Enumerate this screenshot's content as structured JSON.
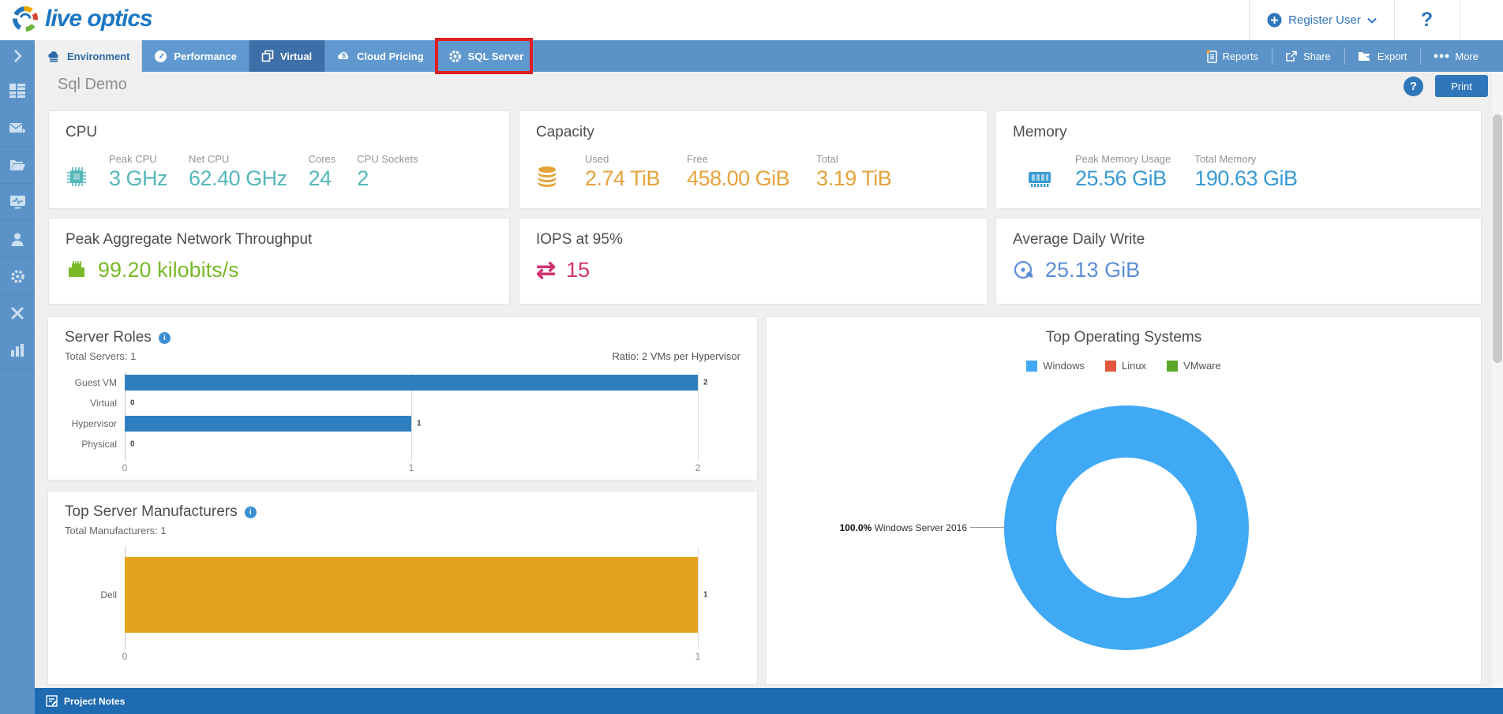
{
  "brand": {
    "name": "live optics"
  },
  "topbar": {
    "register_user": "Register User",
    "help": "?"
  },
  "tabbar": {
    "tabs": [
      {
        "label": "Environment"
      },
      {
        "label": "Performance"
      },
      {
        "label": "Virtual"
      },
      {
        "label": "Cloud Pricing"
      },
      {
        "label": "SQL Server"
      }
    ],
    "actions": [
      {
        "label": "Reports"
      },
      {
        "label": "Share"
      },
      {
        "label": "Export"
      },
      {
        "label": "More"
      }
    ]
  },
  "page": {
    "title": "Sql Demo",
    "print_label": "Print",
    "help": "?"
  },
  "cpu": {
    "title": "CPU",
    "accent": "#54b7b9",
    "metrics": [
      {
        "label": "Peak CPU",
        "value": "3 GHz"
      },
      {
        "label": "Net CPU",
        "value": "62.40 GHz"
      },
      {
        "label": "Cores",
        "value": "24"
      },
      {
        "label": "CPU Sockets",
        "value": "2"
      }
    ]
  },
  "capacity": {
    "title": "Capacity",
    "accent": "#e5a33a",
    "metrics": [
      {
        "label": "Used",
        "value": "2.74 TiB"
      },
      {
        "label": "Free",
        "value": "458.00 GiB"
      },
      {
        "label": "Total",
        "value": "3.19 TiB"
      }
    ]
  },
  "memory": {
    "title": "Memory",
    "accent": "#379ad4",
    "metrics": [
      {
        "label": "Peak Memory Usage",
        "value": "25.56 GiB"
      },
      {
        "label": "Total Memory",
        "value": "190.63 GiB"
      }
    ]
  },
  "network": {
    "title": "Peak Aggregate Network Throughput",
    "value": "99.20 kilobits/s",
    "accent": "#79b829"
  },
  "iops": {
    "title": "IOPS at 95%",
    "value": "15",
    "accent": "#d0336e"
  },
  "daily_write": {
    "title": "Average Daily Write",
    "value": "25.13 GiB",
    "accent": "#5b8ed6"
  },
  "server_roles": {
    "title": "Server Roles",
    "subtitle": "Total Servers: 1",
    "ratio_note": "Ratio: 2 VMs per Hypervisor"
  },
  "manufacturers": {
    "title": "Top Server Manufacturers",
    "subtitle": "Total Manufacturers: 1"
  },
  "top_os": {
    "title": "Top Operating Systems",
    "callout_pct": "100.0%",
    "callout_label": "Windows Server 2016"
  },
  "project_notes": {
    "label": "Project Notes"
  },
  "chart_data": [
    {
      "id": "server_roles",
      "type": "bar",
      "orientation": "horizontal",
      "title": "Server Roles",
      "categories": [
        "Guest VM",
        "Virtual",
        "Hypervisor",
        "Physical"
      ],
      "values": [
        2,
        0,
        1,
        0
      ],
      "xlim": [
        0,
        2
      ],
      "ticks": [
        0,
        1,
        2
      ],
      "bar_color": "#2e7fc0",
      "grid": true,
      "annotations": [
        "Total Servers: 1",
        "Ratio: 2 VMs per Hypervisor"
      ]
    },
    {
      "id": "top_server_manufacturers",
      "type": "bar",
      "orientation": "horizontal",
      "title": "Top Server Manufacturers",
      "categories": [
        "Dell"
      ],
      "values": [
        1
      ],
      "xlim": [
        0,
        1
      ],
      "ticks": [
        0,
        1
      ],
      "bar_color": "#e3a41d",
      "grid": true,
      "annotations": [
        "Total Manufacturers: 1"
      ]
    },
    {
      "id": "top_operating_systems",
      "type": "pie",
      "donut": true,
      "title": "Top Operating Systems",
      "legend": [
        {
          "label": "Windows",
          "color": "#3fa9f5"
        },
        {
          "label": "Linux",
          "color": "#e2573d"
        },
        {
          "label": "VMware",
          "color": "#5ba829"
        }
      ],
      "slices": [
        {
          "label": "Windows Server 2016",
          "value": 100.0,
          "color": "#3fa9f5"
        }
      ],
      "legend_position": "top"
    }
  ]
}
